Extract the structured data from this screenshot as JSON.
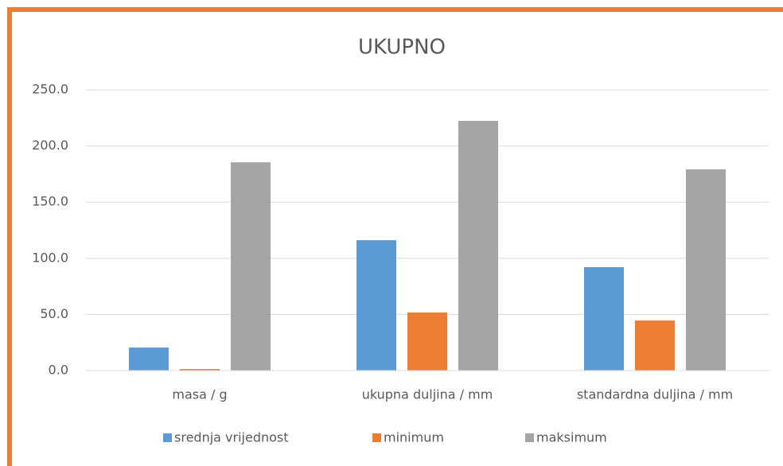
{
  "chart_data": {
    "type": "bar",
    "title": "UKUPNO",
    "categories": [
      "masa / g",
      "ukupna duljina / mm",
      "standardna duljina / mm"
    ],
    "series": [
      {
        "name": "srednja vrijednost",
        "color": "#5b9bd5",
        "values": [
          20.5,
          116.1,
          92.1
        ]
      },
      {
        "name": "minimum",
        "color": "#ed7d31",
        "values": [
          1.4,
          51.7,
          44.6
        ]
      },
      {
        "name": "maksimum",
        "color": "#a5a5a5",
        "values": [
          185.5,
          222.4,
          179.2
        ]
      }
    ],
    "ylim": [
      0,
      250
    ],
    "yticks": [
      {
        "value": 0,
        "label": "0.0"
      },
      {
        "value": 50,
        "label": "50.0"
      },
      {
        "value": 100,
        "label": "100.0"
      },
      {
        "value": 150,
        "label": "150.0"
      },
      {
        "value": 200,
        "label": "200.0"
      },
      {
        "value": 250,
        "label": "250.0"
      }
    ],
    "grid": true,
    "legend": "bottom"
  }
}
